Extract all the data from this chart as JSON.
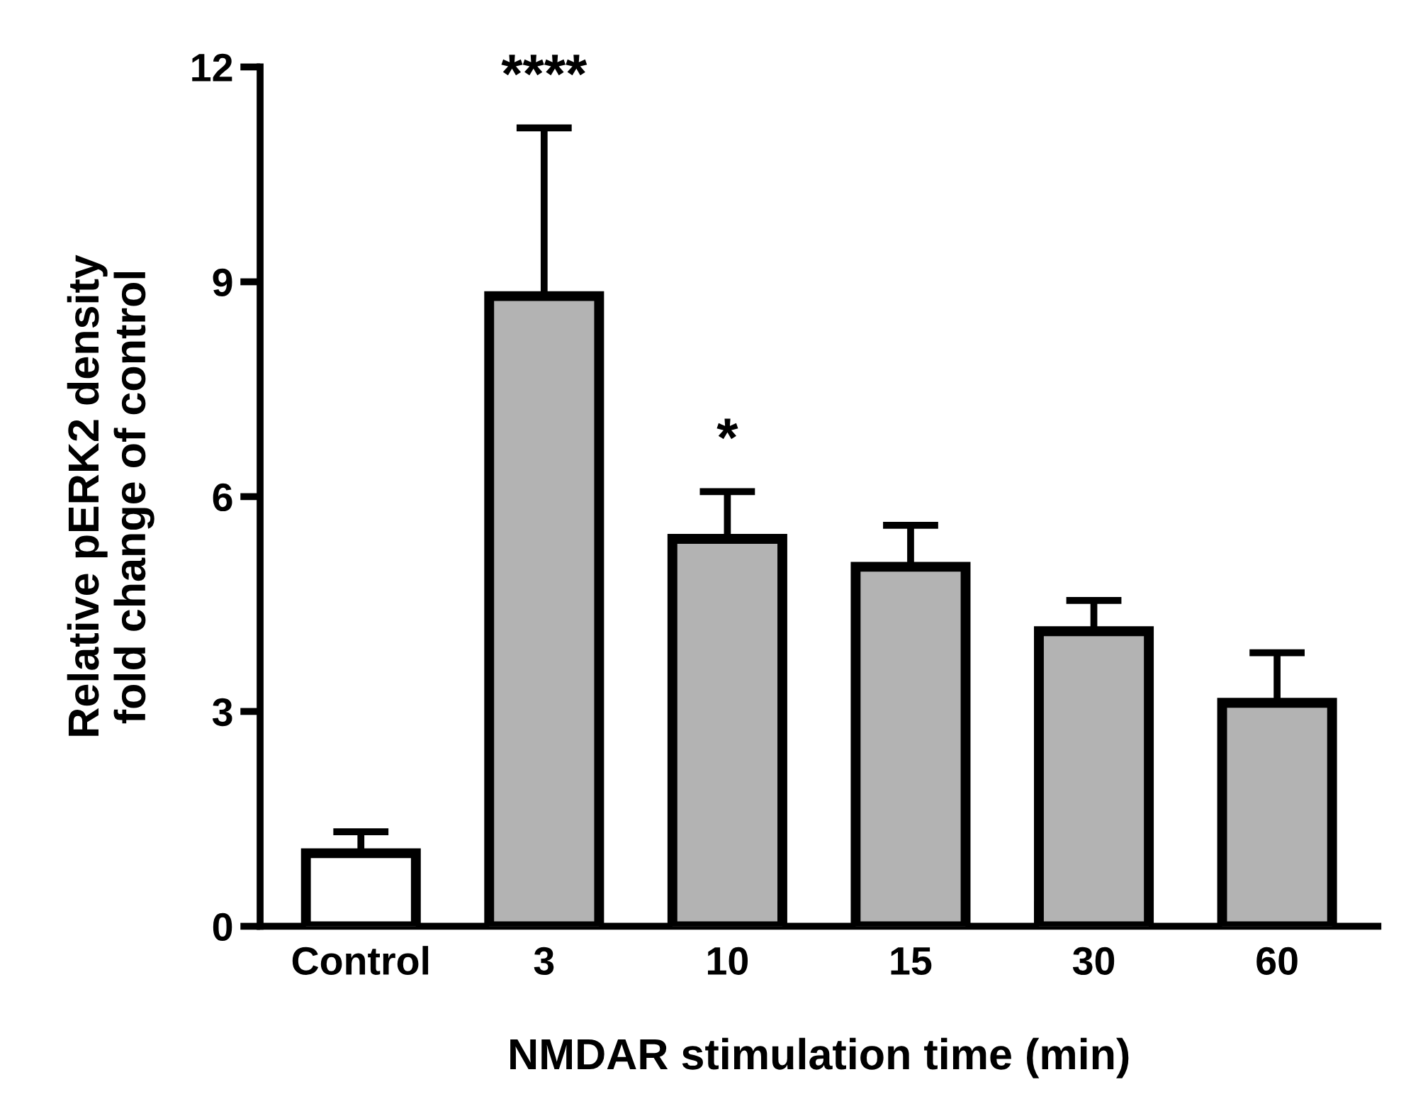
{
  "chart_data": {
    "type": "bar",
    "xlabel": "NMDAR stimulation time (min)",
    "ylabel": "Relative pERK2 density\nfold change of control",
    "categories": [
      "Control",
      "3",
      "10",
      "15",
      "30",
      "60"
    ],
    "values": [
      1.02,
      8.8,
      5.41,
      5.02,
      4.12,
      3.12
    ],
    "colors": [
      "#ffffff",
      "#b3b3b3",
      "#b3b3b3",
      "#b3b3b3",
      "#b3b3b3",
      "#b3b3b3"
    ],
    "errors": [
      [
        1.02,
        1.32
      ],
      [
        8.8,
        11.15
      ],
      [
        5.41,
        6.07
      ],
      [
        5.02,
        5.6
      ],
      [
        4.12,
        4.55
      ],
      [
        3.12,
        3.82
      ]
    ],
    "ylim": [
      0,
      12
    ],
    "yticks": [
      0,
      3,
      6,
      9,
      12
    ],
    "annotations": [
      {
        "text": "****",
        "x": "3",
        "y": 11.15
      },
      {
        "text": "*",
        "x": "10",
        "y": 6.07
      }
    ],
    "grid": false,
    "legend": false
  }
}
